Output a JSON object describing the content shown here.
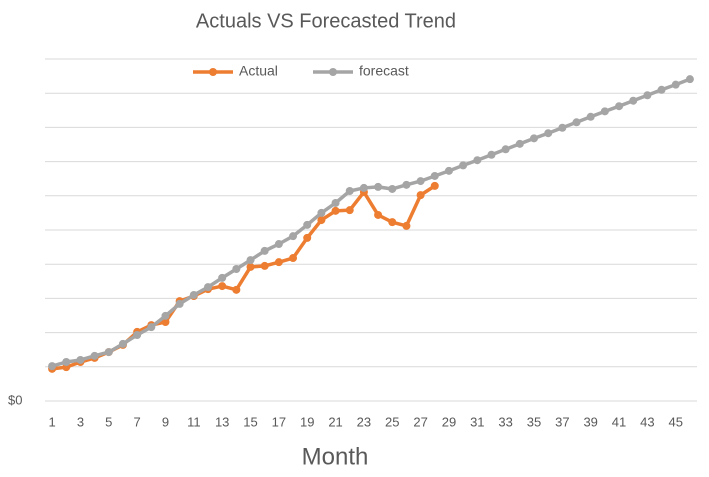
{
  "chart_data": {
    "type": "line",
    "title": "Actuals VS Forecasted Trend",
    "x_label": "Month",
    "categories": [
      "1",
      null,
      "3",
      null,
      "5",
      null,
      "7",
      null,
      "9",
      null,
      "11",
      null,
      "13",
      null,
      "15",
      null,
      "17",
      null,
      "19",
      null,
      "21",
      null,
      "23",
      null,
      "25",
      null,
      "27",
      null,
      "29",
      null,
      "31",
      null,
      "33",
      null,
      "35",
      null,
      "37",
      null,
      "39",
      null,
      "41",
      null,
      "43",
      null,
      "45",
      null
    ],
    "series": [
      {
        "name": "Actual",
        "color": "#ed7d31",
        "values": [
          0.94,
          0.99,
          1.14,
          1.26,
          1.43,
          1.64,
          2.02,
          2.22,
          2.31,
          2.92,
          3.07,
          3.27,
          3.36,
          3.25,
          3.92,
          3.95,
          4.06,
          4.18,
          4.77,
          5.29,
          5.56,
          5.58,
          6.11,
          5.44,
          5.23,
          5.12,
          6.02,
          6.29,
          null,
          null,
          null,
          null,
          null,
          null,
          null,
          null,
          null,
          null,
          null,
          null,
          null,
          null,
          null,
          null,
          null,
          null
        ]
      },
      {
        "name": "forecast",
        "color": "#a5a5a5",
        "values": [
          1.02,
          1.14,
          1.2,
          1.32,
          1.43,
          1.67,
          1.93,
          2.16,
          2.49,
          2.84,
          3.1,
          3.33,
          3.6,
          3.86,
          4.12,
          4.39,
          4.59,
          4.82,
          5.15,
          5.5,
          5.79,
          6.14,
          6.23,
          6.26,
          6.2,
          6.32,
          6.43,
          6.58,
          6.73,
          6.89,
          7.04,
          7.2,
          7.36,
          7.52,
          7.68,
          7.83,
          7.99,
          8.15,
          8.31,
          8.47,
          8.62,
          8.78,
          8.94,
          9.1,
          9.25,
          9.41
        ]
      }
    ],
    "ylim": [
      0,
      10
    ],
    "yticks": [
      {
        "value": 0,
        "label": "$0"
      }
    ],
    "ygrid": [
      1,
      2,
      3,
      4,
      5,
      6,
      7,
      8,
      9,
      10
    ],
    "grid": true,
    "legend": "top"
  }
}
